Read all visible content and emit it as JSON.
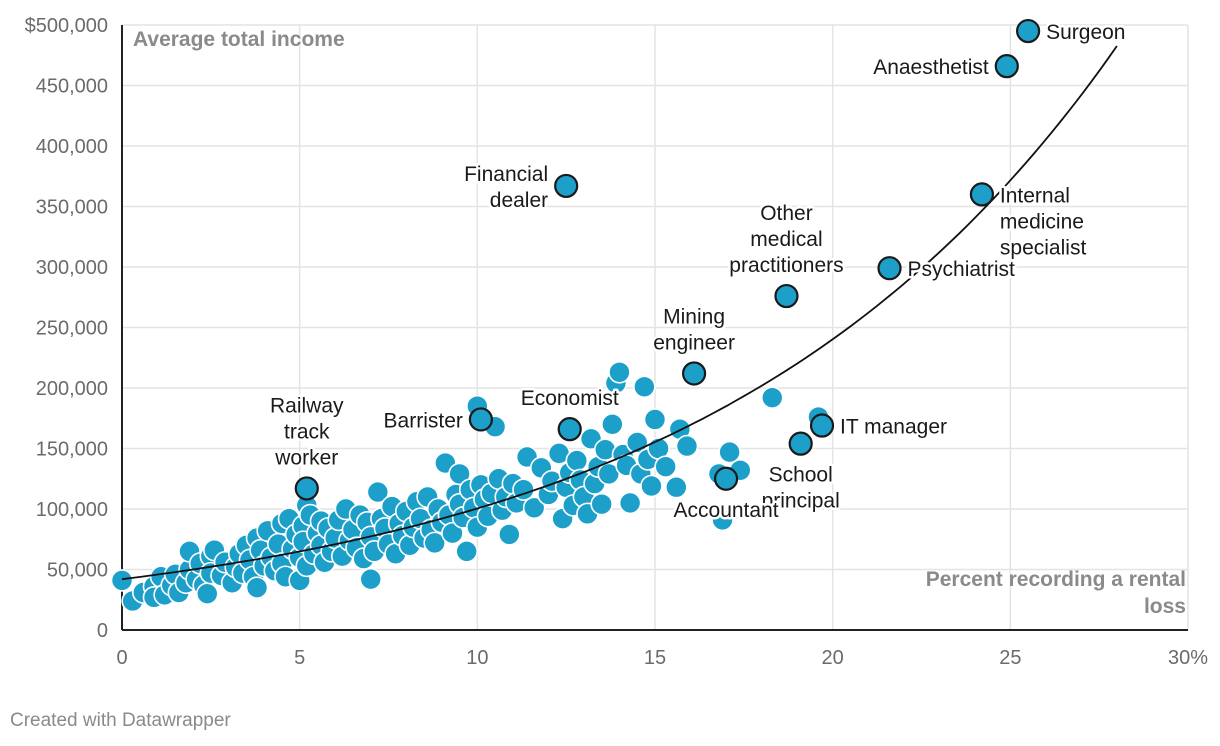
{
  "chart_data": {
    "type": "scatter",
    "ylabel": "Average total income",
    "xlabel": "Percent recording a rental loss",
    "xlim": [
      0,
      30
    ],
    "ylim": [
      0,
      500000
    ],
    "x_ticks": [
      {
        "value": 0,
        "label": "0"
      },
      {
        "value": 5,
        "label": "5"
      },
      {
        "value": 10,
        "label": "10"
      },
      {
        "value": 15,
        "label": "15"
      },
      {
        "value": 20,
        "label": "20"
      },
      {
        "value": 25,
        "label": "25"
      },
      {
        "value": 30,
        "label": "30%"
      }
    ],
    "y_ticks": [
      {
        "value": 0,
        "label": "0"
      },
      {
        "value": 50000,
        "label": "50,000"
      },
      {
        "value": 100000,
        "label": "100,000"
      },
      {
        "value": 150000,
        "label": "150,000"
      },
      {
        "value": 200000,
        "label": "200,000"
      },
      {
        "value": 250000,
        "label": "250,000"
      },
      {
        "value": 300000,
        "label": "300,000"
      },
      {
        "value": 350000,
        "label": "350,000"
      },
      {
        "value": 400000,
        "label": "400,000"
      },
      {
        "value": 450000,
        "label": "450,000"
      },
      {
        "value": 500000,
        "label": "$500,000"
      }
    ],
    "trend": {
      "type": "exponential",
      "x_start": 0,
      "x_end": 28,
      "y0": 42000,
      "growth_rate": 0.0872
    },
    "colors": {
      "point": "#1c9fc9",
      "point_stroke": "#ffffff",
      "highlight_stroke": "#1a1a1a",
      "trend": "#111111"
    },
    "highlighted": [
      {
        "name": "Surgeon",
        "x": 25.5,
        "y": 495000,
        "label_lines": [
          "Surgeon"
        ],
        "label_pos": "right"
      },
      {
        "name": "Anaesthetist",
        "x": 24.9,
        "y": 466000,
        "label_lines": [
          "Anaesthetist"
        ],
        "label_pos": "left"
      },
      {
        "name": "Financial dealer",
        "x": 12.5,
        "y": 367000,
        "label_lines": [
          "Financial",
          "dealer"
        ],
        "label_pos": "left"
      },
      {
        "name": "Internal medicine specialist",
        "x": 24.2,
        "y": 360000,
        "label_lines": [
          "Internal",
          "medicine",
          "specialist"
        ],
        "label_pos": "right"
      },
      {
        "name": "Psychiatrist",
        "x": 21.6,
        "y": 299000,
        "label_lines": [
          "Psychiatrist"
        ],
        "label_pos": "right"
      },
      {
        "name": "Other medical practitioners",
        "x": 18.7,
        "y": 276000,
        "label_lines": [
          "Other",
          "medical",
          "practitioners"
        ],
        "label_pos": "above"
      },
      {
        "name": "Mining engineer",
        "x": 16.1,
        "y": 212000,
        "label_lines": [
          "Mining",
          "engineer"
        ],
        "label_pos": "above"
      },
      {
        "name": "Economist",
        "x": 12.6,
        "y": 166000,
        "label_lines": [
          "Economist"
        ],
        "label_pos": "above"
      },
      {
        "name": "Barrister",
        "x": 10.1,
        "y": 174000,
        "label_lines": [
          "Barrister"
        ],
        "label_pos": "left"
      },
      {
        "name": "Railway track worker",
        "x": 5.2,
        "y": 117000,
        "label_lines": [
          "Railway",
          "track",
          "worker"
        ],
        "label_pos": "above"
      },
      {
        "name": "IT manager",
        "x": 19.7,
        "y": 169000,
        "label_lines": [
          "IT manager"
        ],
        "label_pos": "right"
      },
      {
        "name": "School principal",
        "x": 19.1,
        "y": 154000,
        "label_lines": [
          "School",
          "principal"
        ],
        "label_pos": "below"
      },
      {
        "name": "Accountant",
        "x": 17.0,
        "y": 125000,
        "label_lines": [
          "Accountant"
        ],
        "label_pos": "below"
      }
    ],
    "points": [
      [
        0,
        41000
      ],
      [
        0.3,
        24000
      ],
      [
        0.6,
        31000
      ],
      [
        0.9,
        36000
      ],
      [
        0.9,
        27000
      ],
      [
        1.1,
        44000
      ],
      [
        1.2,
        29000
      ],
      [
        1.4,
        37000
      ],
      [
        1.5,
        46000
      ],
      [
        1.6,
        31000
      ],
      [
        1.8,
        39000
      ],
      [
        1.9,
        50000
      ],
      [
        1.9,
        65000
      ],
      [
        2.1,
        42000
      ],
      [
        2.2,
        55000
      ],
      [
        2.3,
        37000
      ],
      [
        2.4,
        30000
      ],
      [
        2.5,
        61000
      ],
      [
        2.5,
        47000
      ],
      [
        2.6,
        66000
      ],
      [
        2.8,
        45000
      ],
      [
        2.9,
        56000
      ],
      [
        3.1,
        39000
      ],
      [
        3.2,
        52000
      ],
      [
        3.3,
        63000
      ],
      [
        3.4,
        47000
      ],
      [
        3.5,
        70000
      ],
      [
        3.6,
        58000
      ],
      [
        3.7,
        44000
      ],
      [
        3.8,
        76000
      ],
      [
        3.8,
        35000
      ],
      [
        3.9,
        66000
      ],
      [
        4.0,
        53000
      ],
      [
        4.1,
        82000
      ],
      [
        4.2,
        60000
      ],
      [
        4.3,
        49000
      ],
      [
        4.4,
        71000
      ],
      [
        4.5,
        88000
      ],
      [
        4.5,
        55000
      ],
      [
        4.6,
        44000
      ],
      [
        4.7,
        92000
      ],
      [
        4.8,
        67000
      ],
      [
        4.9,
        79000
      ],
      [
        5.0,
        41000
      ],
      [
        5.0,
        60000
      ],
      [
        5.1,
        86000
      ],
      [
        5.1,
        73000
      ],
      [
        5.2,
        53000
      ],
      [
        5.2,
        103000
      ],
      [
        5.3,
        95000
      ],
      [
        5.4,
        63000
      ],
      [
        5.5,
        80000
      ],
      [
        5.6,
        70000
      ],
      [
        5.6,
        90000
      ],
      [
        5.7,
        56000
      ],
      [
        5.8,
        84000
      ],
      [
        5.9,
        65000
      ],
      [
        6.0,
        76000
      ],
      [
        6.1,
        91000
      ],
      [
        6.2,
        61000
      ],
      [
        6.3,
        100000
      ],
      [
        6.4,
        74000
      ],
      [
        6.5,
        83000
      ],
      [
        6.6,
        68000
      ],
      [
        6.7,
        95000
      ],
      [
        6.8,
        59000
      ],
      [
        6.9,
        89000
      ],
      [
        7.0,
        77000
      ],
      [
        7.0,
        42000
      ],
      [
        7.1,
        65000
      ],
      [
        7.2,
        114000
      ],
      [
        7.3,
        92000
      ],
      [
        7.4,
        84000
      ],
      [
        7.5,
        71000
      ],
      [
        7.6,
        102000
      ],
      [
        7.7,
        63000
      ],
      [
        7.8,
        88000
      ],
      [
        7.9,
        78000
      ],
      [
        8.0,
        98000
      ],
      [
        8.1,
        70000
      ],
      [
        8.2,
        85000
      ],
      [
        8.3,
        106000
      ],
      [
        8.4,
        92000
      ],
      [
        8.5,
        76000
      ],
      [
        8.6,
        110000
      ],
      [
        8.7,
        83000
      ],
      [
        8.8,
        72000
      ],
      [
        8.9,
        100000
      ],
      [
        9.0,
        89000
      ],
      [
        9.1,
        138000
      ],
      [
        9.2,
        95000
      ],
      [
        9.3,
        80000
      ],
      [
        9.4,
        112000
      ],
      [
        9.5,
        104000
      ],
      [
        9.5,
        129000
      ],
      [
        9.6,
        93000
      ],
      [
        9.7,
        65000
      ],
      [
        9.8,
        116000
      ],
      [
        9.9,
        101000
      ],
      [
        10.0,
        85000
      ],
      [
        10.0,
        185000
      ],
      [
        10.1,
        120000
      ],
      [
        10.2,
        108000
      ],
      [
        10.3,
        94000
      ],
      [
        10.4,
        113000
      ],
      [
        10.5,
        168000
      ],
      [
        10.6,
        125000
      ],
      [
        10.7,
        99000
      ],
      [
        10.8,
        110000
      ],
      [
        10.9,
        79000
      ],
      [
        11.0,
        121000
      ],
      [
        11.1,
        105000
      ],
      [
        11.3,
        116000
      ],
      [
        11.4,
        143000
      ],
      [
        11.6,
        101000
      ],
      [
        11.8,
        134000
      ],
      [
        12.0,
        112000
      ],
      [
        12.1,
        123000
      ],
      [
        12.3,
        146000
      ],
      [
        12.4,
        92000
      ],
      [
        12.5,
        118000
      ],
      [
        12.6,
        130000
      ],
      [
        12.7,
        103000
      ],
      [
        12.8,
        140000
      ],
      [
        12.9,
        124000
      ],
      [
        13.0,
        110000
      ],
      [
        13.1,
        96000
      ],
      [
        13.2,
        158000
      ],
      [
        13.3,
        121000
      ],
      [
        13.4,
        135000
      ],
      [
        13.5,
        104000
      ],
      [
        13.6,
        149000
      ],
      [
        13.7,
        129000
      ],
      [
        13.8,
        170000
      ],
      [
        13.9,
        204000
      ],
      [
        14.0,
        213000
      ],
      [
        14.1,
        145000
      ],
      [
        14.2,
        136000
      ],
      [
        14.3,
        105000
      ],
      [
        14.5,
        155000
      ],
      [
        14.6,
        129000
      ],
      [
        14.7,
        201000
      ],
      [
        14.8,
        141000
      ],
      [
        14.9,
        119000
      ],
      [
        15.0,
        174000
      ],
      [
        15.1,
        150000
      ],
      [
        15.3,
        135000
      ],
      [
        15.6,
        118000
      ],
      [
        15.7,
        166000
      ],
      [
        15.9,
        152000
      ],
      [
        16.8,
        129000
      ],
      [
        17.1,
        147000
      ],
      [
        17.4,
        132000
      ],
      [
        18.3,
        192000
      ],
      [
        19.6,
        176000
      ],
      [
        16.9,
        91000
      ]
    ]
  },
  "footer": {
    "credit": "Created with Datawrapper"
  }
}
